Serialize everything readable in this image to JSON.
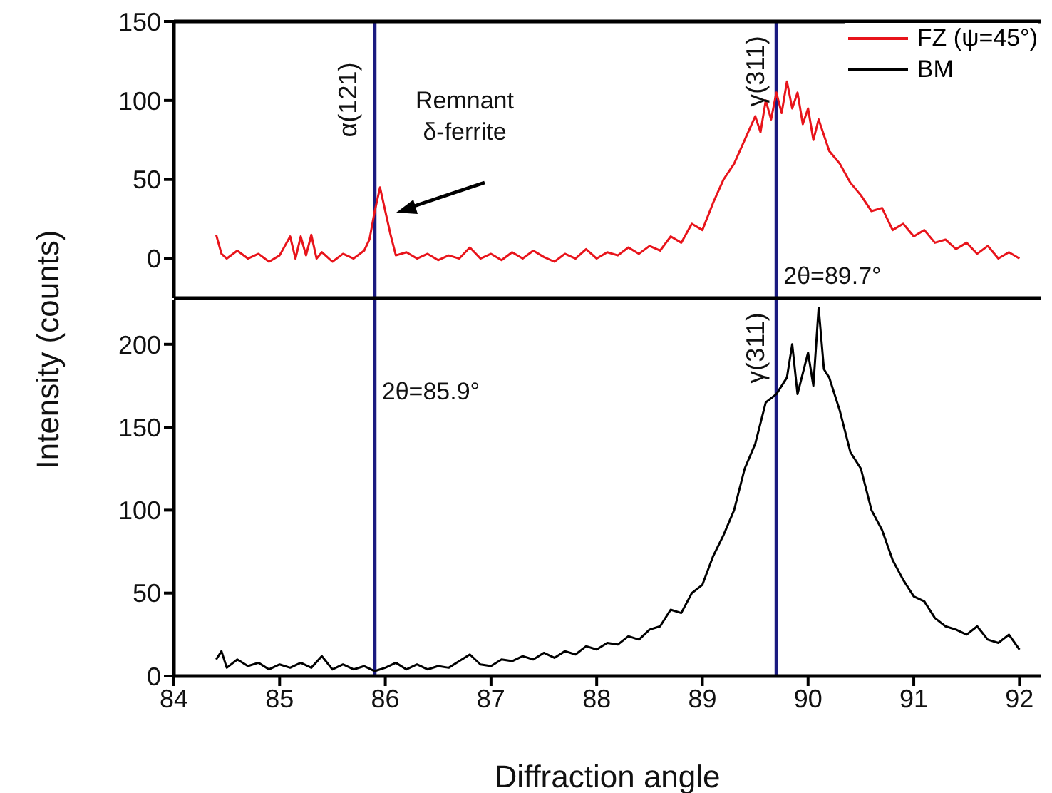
{
  "chart_data": [
    {
      "type": "line",
      "legend": "top right",
      "tick_labels": "y",
      "xlim": [
        84,
        92.2
      ],
      "xticks": [
        84,
        85,
        86,
        87,
        88,
        89,
        90,
        91,
        92
      ],
      "ylim": [
        -25,
        150
      ],
      "yticks": [
        0,
        50,
        100,
        150
      ],
      "series": [
        {
          "name": "FZ (ψ=45°)",
          "color": "#e8141b",
          "x": [
            84.4,
            84.45,
            84.5,
            84.6,
            84.7,
            84.8,
            84.9,
            85.0,
            85.1,
            85.15,
            85.2,
            85.25,
            85.3,
            85.35,
            85.4,
            85.5,
            85.6,
            85.7,
            85.8,
            85.85,
            85.9,
            85.95,
            86.0,
            86.05,
            86.1,
            86.2,
            86.3,
            86.4,
            86.5,
            86.6,
            86.7,
            86.8,
            86.9,
            87.0,
            87.1,
            87.2,
            87.3,
            87.4,
            87.5,
            87.6,
            87.7,
            87.8,
            87.9,
            88.0,
            88.1,
            88.2,
            88.3,
            88.4,
            88.5,
            88.6,
            88.7,
            88.8,
            88.9,
            89.0,
            89.1,
            89.2,
            89.3,
            89.4,
            89.5,
            89.55,
            89.6,
            89.65,
            89.7,
            89.75,
            89.8,
            89.85,
            89.9,
            89.95,
            90.0,
            90.05,
            90.1,
            90.2,
            90.3,
            90.4,
            90.5,
            90.6,
            90.7,
            90.8,
            90.9,
            91.0,
            91.1,
            91.2,
            91.3,
            91.4,
            91.5,
            91.6,
            91.7,
            91.8,
            91.9,
            92.0
          ],
          "values": [
            15,
            3,
            0,
            5,
            0,
            3,
            -2,
            2,
            14,
            0,
            14,
            2,
            15,
            0,
            4,
            -2,
            3,
            0,
            5,
            12,
            30,
            45,
            30,
            15,
            2,
            4,
            0,
            3,
            -1,
            2,
            0,
            7,
            0,
            3,
            -1,
            4,
            0,
            5,
            1,
            -2,
            3,
            0,
            6,
            0,
            4,
            2,
            7,
            3,
            8,
            5,
            14,
            10,
            22,
            18,
            35,
            50,
            60,
            75,
            90,
            80,
            100,
            88,
            105,
            92,
            112,
            95,
            105,
            85,
            95,
            75,
            88,
            68,
            60,
            48,
            40,
            30,
            32,
            18,
            22,
            14,
            18,
            10,
            12,
            6,
            10,
            3,
            8,
            0,
            4,
            0
          ]
        }
      ],
      "ref_lines": [
        {
          "axis": "x",
          "value": 85.9,
          "color": "#1a1a80"
        },
        {
          "axis": "x",
          "value": 89.7,
          "label": "2θ=89.7°",
          "color": "#1a1a80"
        }
      ],
      "annotations": [
        "α(121)",
        "Remnant δ-ferrite",
        "γ(311)"
      ]
    },
    {
      "type": "line",
      "xlabel": "Diffraction angle",
      "ylabel": "Intensity (counts)",
      "xlim": [
        84,
        92.2
      ],
      "xticks": [
        84,
        85,
        86,
        87,
        88,
        89,
        90,
        91,
        92
      ],
      "ylim": [
        0,
        227
      ],
      "yticks": [
        0,
        50,
        100,
        150,
        200
      ],
      "series": [
        {
          "name": "BM",
          "color": "#000000",
          "x": [
            84.4,
            84.45,
            84.5,
            84.6,
            84.7,
            84.8,
            84.9,
            85.0,
            85.1,
            85.2,
            85.3,
            85.4,
            85.5,
            85.6,
            85.7,
            85.8,
            85.9,
            86.0,
            86.1,
            86.2,
            86.3,
            86.4,
            86.5,
            86.6,
            86.7,
            86.8,
            86.9,
            87.0,
            87.1,
            87.2,
            87.3,
            87.4,
            87.5,
            87.6,
            87.7,
            87.8,
            87.9,
            88.0,
            88.1,
            88.2,
            88.3,
            88.4,
            88.5,
            88.6,
            88.7,
            88.8,
            88.9,
            89.0,
            89.1,
            89.2,
            89.3,
            89.4,
            89.5,
            89.6,
            89.7,
            89.8,
            89.85,
            89.9,
            90.0,
            90.05,
            90.1,
            90.15,
            90.2,
            90.3,
            90.4,
            90.5,
            90.6,
            90.7,
            90.8,
            90.9,
            91.0,
            91.1,
            91.2,
            91.3,
            91.4,
            91.5,
            91.6,
            91.7,
            91.8,
            91.9,
            92.0
          ],
          "values": [
            10,
            15,
            5,
            10,
            6,
            8,
            4,
            7,
            5,
            8,
            5,
            12,
            4,
            7,
            4,
            6,
            3,
            5,
            8,
            4,
            7,
            4,
            6,
            5,
            9,
            13,
            7,
            6,
            10,
            9,
            12,
            10,
            14,
            11,
            15,
            13,
            18,
            16,
            20,
            19,
            24,
            22,
            28,
            30,
            40,
            38,
            50,
            55,
            72,
            85,
            100,
            125,
            140,
            165,
            170,
            180,
            200,
            170,
            195,
            175,
            222,
            185,
            180,
            160,
            135,
            125,
            100,
            88,
            70,
            58,
            48,
            45,
            35,
            30,
            28,
            25,
            30,
            22,
            20,
            25,
            16
          ]
        }
      ],
      "ref_lines": [
        {
          "axis": "x",
          "value": 85.9,
          "label": "2θ=85.9°",
          "color": "#1a1a80"
        },
        {
          "axis": "x",
          "value": 89.7,
          "color": "#1a1a80"
        }
      ],
      "annotations": [
        "γ(311)"
      ]
    }
  ]
}
